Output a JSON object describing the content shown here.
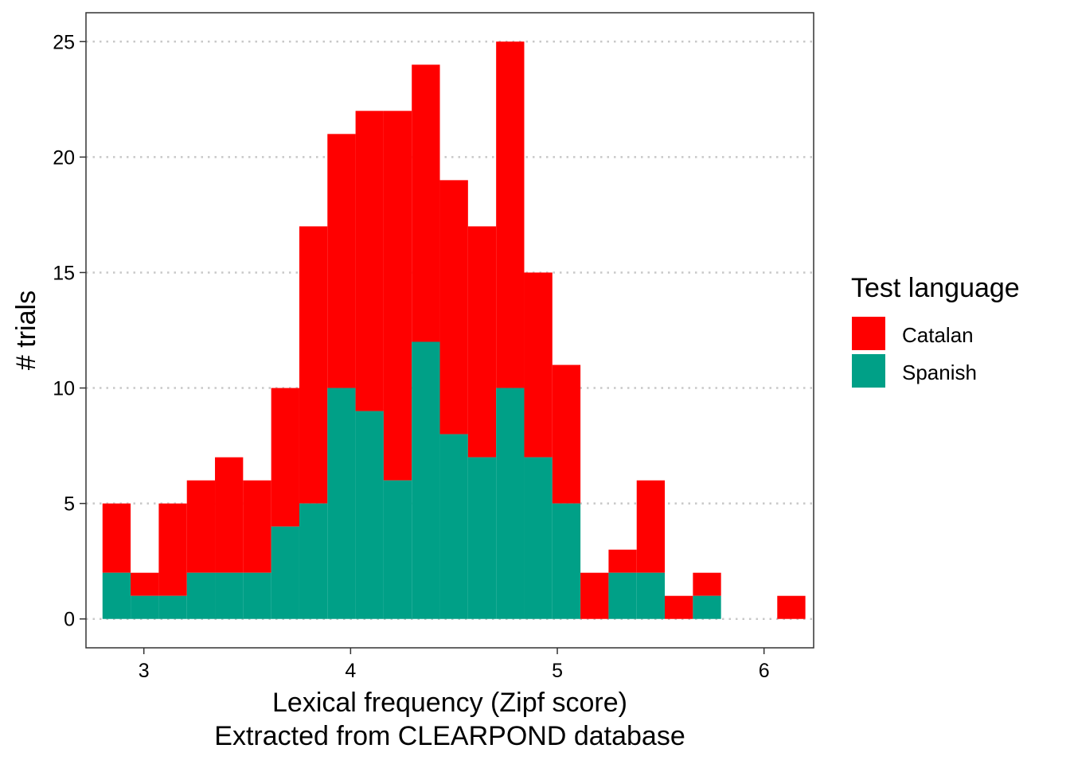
{
  "chart_data": {
    "type": "bar",
    "subtype": "stacked-histogram",
    "xlabel_lines": [
      "Lexical frequency (Zipf score)",
      "Extracted from CLEARPOND database"
    ],
    "ylabel": "# trials",
    "xlim": [
      2.72,
      6.24
    ],
    "ylim": [
      -1.25,
      26.25
    ],
    "x_ticks": [
      3,
      4,
      5,
      6
    ],
    "y_ticks": [
      0,
      5,
      10,
      15,
      20,
      25
    ],
    "grid": "horizontal major, dotted",
    "legend": {
      "title": "Test language",
      "position": "right",
      "entries": [
        {
          "label": "Catalan",
          "color": "#ff0000"
        },
        {
          "label": "Spanish",
          "color": "#00a087"
        }
      ]
    },
    "bin_width": 0.136,
    "bins": [
      {
        "x0": 2.8,
        "x1": 2.936,
        "total": 5,
        "spanish": 2
      },
      {
        "x0": 2.936,
        "x1": 3.072,
        "total": 2,
        "spanish": 1
      },
      {
        "x0": 3.072,
        "x1": 3.208,
        "total": 5,
        "spanish": 1
      },
      {
        "x0": 3.208,
        "x1": 3.344,
        "total": 6,
        "spanish": 2
      },
      {
        "x0": 3.344,
        "x1": 3.48,
        "total": 7,
        "spanish": 2
      },
      {
        "x0": 3.48,
        "x1": 3.616,
        "total": 6,
        "spanish": 2
      },
      {
        "x0": 3.616,
        "x1": 3.752,
        "total": 10,
        "spanish": 4
      },
      {
        "x0": 3.752,
        "x1": 3.888,
        "total": 17,
        "spanish": 5
      },
      {
        "x0": 3.888,
        "x1": 4.024,
        "total": 21,
        "spanish": 10
      },
      {
        "x0": 4.024,
        "x1": 4.16,
        "total": 22,
        "spanish": 9
      },
      {
        "x0": 4.16,
        "x1": 4.296,
        "total": 22,
        "spanish": 6
      },
      {
        "x0": 4.296,
        "x1": 4.432,
        "total": 24,
        "spanish": 12
      },
      {
        "x0": 4.432,
        "x1": 4.568,
        "total": 19,
        "spanish": 8
      },
      {
        "x0": 4.568,
        "x1": 4.704,
        "total": 17,
        "spanish": 7
      },
      {
        "x0": 4.704,
        "x1": 4.84,
        "total": 25,
        "spanish": 10
      },
      {
        "x0": 4.84,
        "x1": 4.976,
        "total": 15,
        "spanish": 7
      },
      {
        "x0": 4.976,
        "x1": 5.112,
        "total": 11,
        "spanish": 5
      },
      {
        "x0": 5.112,
        "x1": 5.248,
        "total": 2,
        "spanish": 0
      },
      {
        "x0": 5.248,
        "x1": 5.384,
        "total": 3,
        "spanish": 2
      },
      {
        "x0": 5.384,
        "x1": 5.52,
        "total": 6,
        "spanish": 2
      },
      {
        "x0": 5.52,
        "x1": 5.656,
        "total": 1,
        "spanish": 0
      },
      {
        "x0": 5.656,
        "x1": 5.792,
        "total": 2,
        "spanish": 1
      },
      {
        "x0": 5.792,
        "x1": 5.928,
        "total": 0,
        "spanish": 0
      },
      {
        "x0": 5.928,
        "x1": 6.064,
        "total": 0,
        "spanish": 0
      },
      {
        "x0": 6.064,
        "x1": 6.2,
        "total": 1,
        "spanish": 0
      }
    ]
  }
}
